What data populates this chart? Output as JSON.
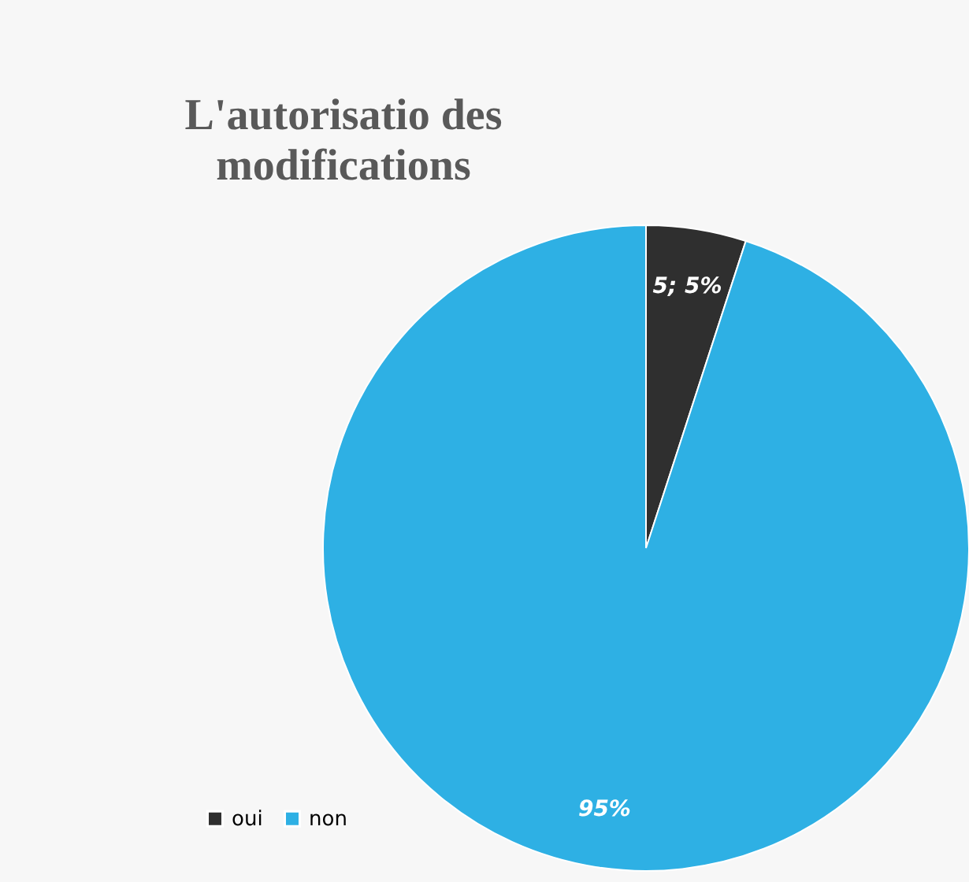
{
  "chart_data": {
    "type": "pie",
    "title": "L'autorisatio des modifications",
    "categories": [
      "oui",
      "non"
    ],
    "values": [
      5,
      95
    ],
    "colors": [
      "#2f2f2f",
      "#2eb0e4"
    ],
    "value_labels": [
      "5; 5%",
      "95%"
    ],
    "legend": "bottom left"
  }
}
